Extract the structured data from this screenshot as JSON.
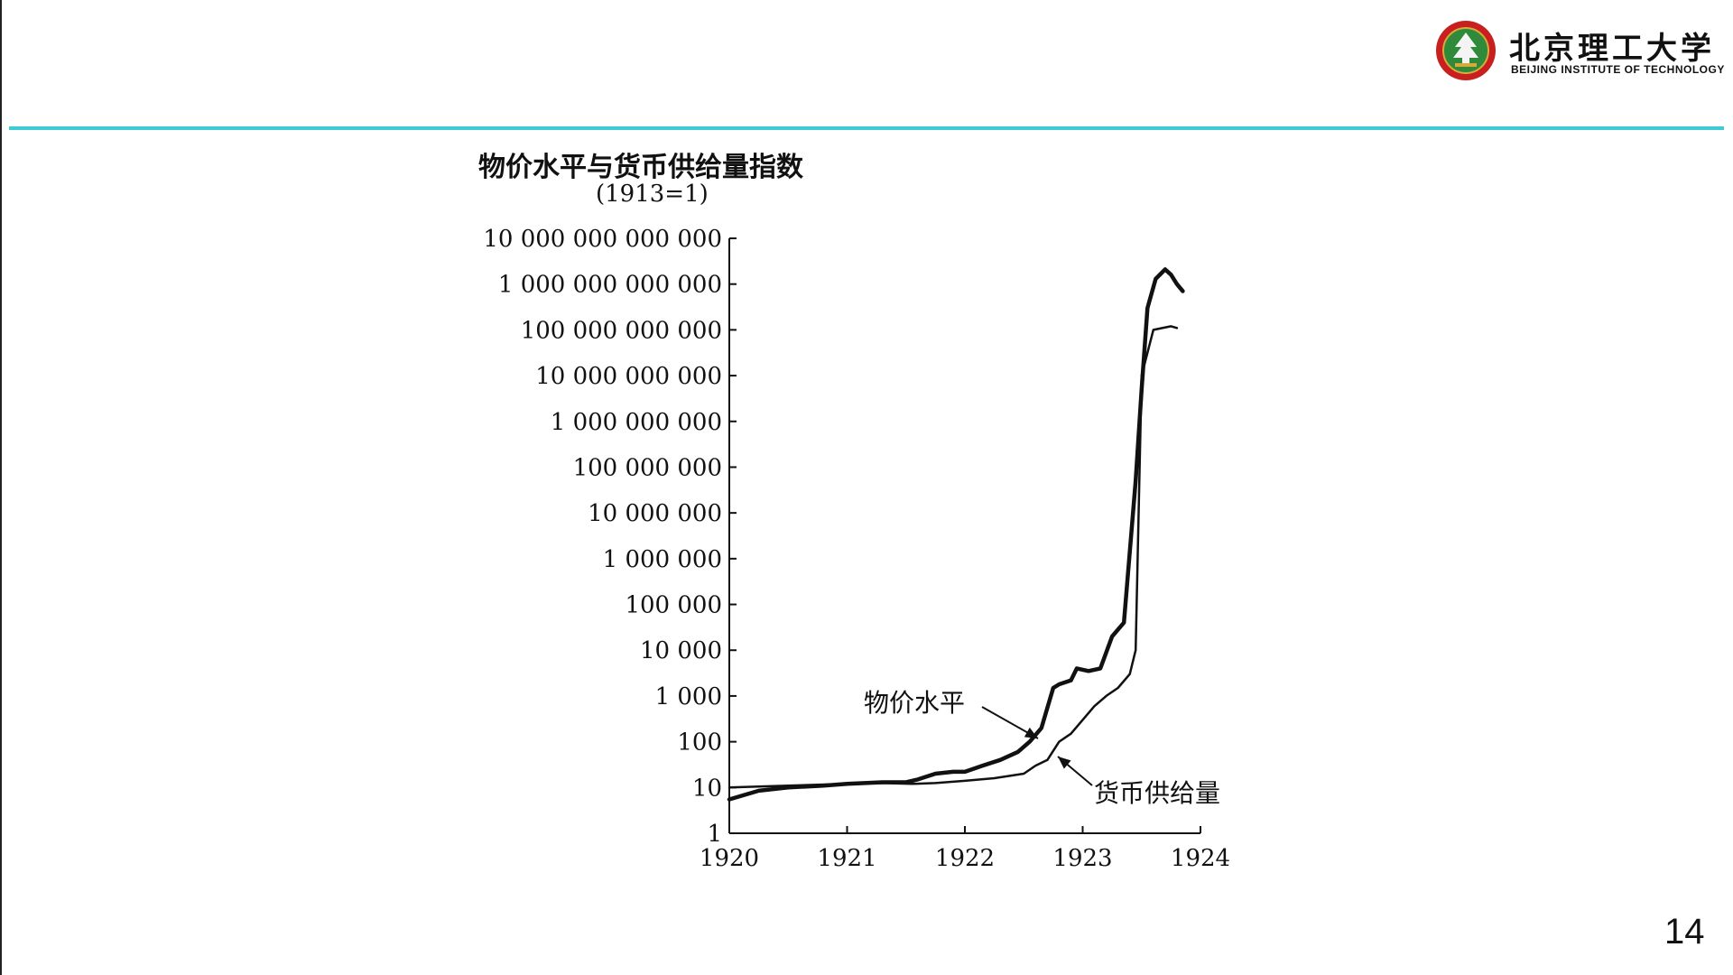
{
  "slide": {
    "page_number": "14",
    "accent_color": "#3ecbd6"
  },
  "logo": {
    "name_cn": "北京理工大学",
    "name_en": "BEIJING INSTITUTE OF TECHNOLOGY",
    "emblem_icon": "university-emblem-icon",
    "emblem_colors": [
      "#2f8a3a",
      "#c8201e",
      "#d9a93a"
    ]
  },
  "chart_data": {
    "type": "line",
    "title": "物价水平与货币供给量指数",
    "subtitle": "(1913=1)",
    "yscale": "log",
    "ylim": [
      1,
      10000000000000
    ],
    "xlim": [
      1920,
      1924
    ],
    "y_ticks": [
      {
        "value": 1,
        "label": "1"
      },
      {
        "value": 10,
        "label": "10"
      },
      {
        "value": 100,
        "label": "100"
      },
      {
        "value": 1000,
        "label": "1 000"
      },
      {
        "value": 10000,
        "label": "10 000"
      },
      {
        "value": 100000,
        "label": "100 000"
      },
      {
        "value": 1000000,
        "label": "1 000 000"
      },
      {
        "value": 10000000,
        "label": "10 000 000"
      },
      {
        "value": 100000000,
        "label": "100 000 000"
      },
      {
        "value": 1000000000,
        "label": "1 000 000 000"
      },
      {
        "value": 10000000000,
        "label": "10 000 000 000"
      },
      {
        "value": 100000000000,
        "label": "100 000 000 000"
      },
      {
        "value": 1000000000000,
        "label": "1 000 000 000 000"
      },
      {
        "value": 10000000000000,
        "label": "10 000 000 000 000"
      }
    ],
    "x_ticks": [
      {
        "value": 1920,
        "label": "1920"
      },
      {
        "value": 1921,
        "label": "1921"
      },
      {
        "value": 1922,
        "label": "1922"
      },
      {
        "value": 1923,
        "label": "1923"
      },
      {
        "value": 1924,
        "label": "1924"
      }
    ],
    "grid": false,
    "legend": "none",
    "series": [
      {
        "name": "物价水平",
        "stroke_width": 4.5,
        "x": [
          1920.0,
          1920.25,
          1920.5,
          1920.8,
          1921.0,
          1921.3,
          1921.5,
          1921.6,
          1921.75,
          1921.9,
          1922.0,
          1922.15,
          1922.3,
          1922.45,
          1922.55,
          1922.65,
          1922.75,
          1922.8,
          1922.9,
          1922.95,
          1923.05,
          1923.15,
          1923.25,
          1923.35,
          1923.45,
          1923.5,
          1923.55,
          1923.62,
          1923.7,
          1923.75,
          1923.8,
          1923.85
        ],
        "values": [
          5.5,
          8.5,
          10.0,
          11.0,
          12.0,
          13.0,
          13.0,
          15.0,
          20.0,
          22.0,
          22.0,
          30.0,
          40.0,
          60.0,
          100.0,
          200.0,
          1500.0,
          1800.0,
          2200.0,
          4000.0,
          3500.0,
          4000.0,
          20000.0,
          40000.0,
          50000000.0,
          5000000000.0,
          300000000000.0,
          1300000000000.0,
          2100000000000.0,
          1600000000000.0,
          1000000000000.0,
          700000000000.0
        ]
      },
      {
        "name": "货币供给量",
        "stroke_width": 2.5,
        "x": [
          1920.0,
          1920.5,
          1921.0,
          1921.3,
          1921.55,
          1921.75,
          1922.0,
          1922.25,
          1922.5,
          1922.6,
          1922.7,
          1922.8,
          1922.9,
          1923.0,
          1923.1,
          1923.2,
          1923.3,
          1923.4,
          1923.45,
          1923.5,
          1923.6,
          1923.75,
          1923.8
        ],
        "values": [
          10.0,
          11.0,
          12.0,
          12.5,
          12.0,
          12.5,
          14.0,
          16.0,
          20.0,
          30.0,
          40.0,
          100.0,
          150.0,
          300.0,
          600.0,
          1000.0,
          1500.0,
          3000.0,
          10000.0,
          10000000000.0,
          100000000000.0,
          120000000000.0,
          110000000000.0
        ]
      }
    ],
    "annotations": [
      {
        "text": "物价水平",
        "target_series": "物价水平"
      },
      {
        "text": "货币供给量",
        "target_series": "货币供给量"
      }
    ]
  }
}
